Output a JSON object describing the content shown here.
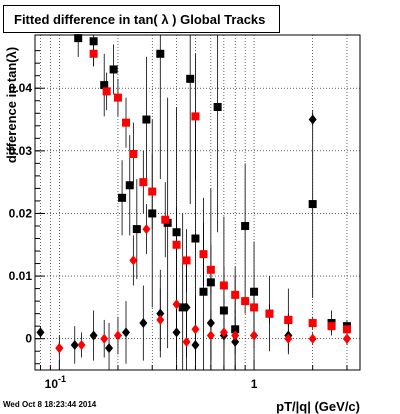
{
  "chart_data": {
    "type": "scatter",
    "title": "Fitted difference in tan( λ )  Global Tracks",
    "xlabel": "pT/|q| (GeV/c)",
    "ylabel": "difference in tan(λ)",
    "x_scale": "log",
    "xlim": [
      0.075,
      3.5
    ],
    "ylim": [
      -0.005,
      0.0485
    ],
    "x_tick_labels": [
      "10^-1",
      "1"
    ],
    "y_tick_labels": [
      "0",
      "0.01",
      "0.02",
      "0.03",
      "0.04"
    ],
    "grid": true,
    "colors": {
      "black_series": "#000000",
      "red_series": "#ff0000"
    },
    "series": [
      {
        "marker": "square",
        "color": "black",
        "points": [
          {
            "x": 0.125,
            "y": 0.048,
            "err": 0.003
          },
          {
            "x": 0.15,
            "y": 0.0475,
            "err": 0.004
          },
          {
            "x": 0.17,
            "y": 0.0405,
            "err": 0.005
          },
          {
            "x": 0.19,
            "y": 0.043,
            "err": 0.004
          },
          {
            "x": 0.21,
            "y": 0.0225,
            "err": 0.006
          },
          {
            "x": 0.23,
            "y": 0.0245,
            "err": 0.008
          },
          {
            "x": 0.25,
            "y": 0.0175,
            "err": 0.008
          },
          {
            "x": 0.28,
            "y": 0.035,
            "err": 0.01
          },
          {
            "x": 0.3,
            "y": 0.02,
            "err": 0.015
          },
          {
            "x": 0.33,
            "y": 0.0455,
            "err": 0.02
          },
          {
            "x": 0.36,
            "y": 0.0185,
            "err": 0.02
          },
          {
            "x": 0.4,
            "y": 0.017,
            "err": 0.02
          },
          {
            "x": 0.43,
            "y": 0.005,
            "err": 0.015
          },
          {
            "x": 0.47,
            "y": 0.0415,
            "err": 0.02
          },
          {
            "x": 0.5,
            "y": 0.016,
            "err": 0.02
          },
          {
            "x": 0.55,
            "y": 0.0075,
            "err": 0.015
          },
          {
            "x": 0.6,
            "y": 0.009,
            "err": 0.015
          },
          {
            "x": 0.65,
            "y": 0.037,
            "err": 0.02
          },
          {
            "x": 0.7,
            "y": 0.0045,
            "err": 0.015
          },
          {
            "x": 0.8,
            "y": 0.0015,
            "err": 0.01
          },
          {
            "x": 0.9,
            "y": 0.018,
            "err": 0.01
          },
          {
            "x": 1.0,
            "y": 0.0075,
            "err": 0.008
          },
          {
            "x": 1.2,
            "y": 0.004,
            "err": 0.006
          },
          {
            "x": 1.5,
            "y": 0.003,
            "err": 0.005
          },
          {
            "x": 2.0,
            "y": 0.0215,
            "err": 0.015
          },
          {
            "x": 2.5,
            "y": 0.0025,
            "err": 0.002
          },
          {
            "x": 3.0,
            "y": 0.002,
            "err": 0.001
          }
        ]
      },
      {
        "marker": "square",
        "color": "red",
        "points": [
          {
            "x": 0.15,
            "y": 0.0455,
            "err": 0.002
          },
          {
            "x": 0.175,
            "y": 0.0395,
            "err": 0.003
          },
          {
            "x": 0.2,
            "y": 0.0385,
            "err": 0.003
          },
          {
            "x": 0.22,
            "y": 0.0345,
            "err": 0.004
          },
          {
            "x": 0.24,
            "y": 0.0295,
            "err": 0.005
          },
          {
            "x": 0.27,
            "y": 0.025,
            "err": 0.005
          },
          {
            "x": 0.3,
            "y": 0.0235,
            "err": 0.006
          },
          {
            "x": 0.35,
            "y": 0.019,
            "err": 0.006
          },
          {
            "x": 0.4,
            "y": 0.015,
            "err": 0.006
          },
          {
            "x": 0.45,
            "y": 0.0125,
            "err": 0.005
          },
          {
            "x": 0.5,
            "y": 0.0355,
            "err": 0.01
          },
          {
            "x": 0.55,
            "y": 0.0135,
            "err": 0.005
          },
          {
            "x": 0.6,
            "y": 0.011,
            "err": 0.004
          },
          {
            "x": 0.7,
            "y": 0.0085,
            "err": 0.003
          },
          {
            "x": 0.8,
            "y": 0.007,
            "err": 0.003
          },
          {
            "x": 0.9,
            "y": 0.006,
            "err": 0.002
          },
          {
            "x": 1.0,
            "y": 0.005,
            "err": 0.002
          },
          {
            "x": 1.2,
            "y": 0.004,
            "err": 0.0015
          },
          {
            "x": 1.5,
            "y": 0.003,
            "err": 0.001
          },
          {
            "x": 2.0,
            "y": 0.0025,
            "err": 0.001
          },
          {
            "x": 2.5,
            "y": 0.002,
            "err": 0.001
          },
          {
            "x": 3.0,
            "y": 0.0015,
            "err": 0.001
          }
        ]
      },
      {
        "marker": "diamond",
        "color": "black",
        "points": [
          {
            "x": 0.08,
            "y": 0.001,
            "err": 0.001
          },
          {
            "x": 0.1,
            "y": -0.0015,
            "err": 0.002
          },
          {
            "x": 0.12,
            "y": -0.001,
            "err": 0.003
          },
          {
            "x": 0.15,
            "y": 0.0005,
            "err": 0.004
          },
          {
            "x": 0.18,
            "y": -0.0015,
            "err": 0.004
          },
          {
            "x": 0.22,
            "y": 0.001,
            "err": 0.005
          },
          {
            "x": 0.27,
            "y": 0.0025,
            "err": 0.006
          },
          {
            "x": 0.33,
            "y": 0.004,
            "err": 0.007
          },
          {
            "x": 0.4,
            "y": 0.001,
            "err": 0.007
          },
          {
            "x": 0.45,
            "y": 0.005,
            "err": 0.008
          },
          {
            "x": 0.5,
            "y": -0.001,
            "err": 0.008
          },
          {
            "x": 0.6,
            "y": 0.0025,
            "err": 0.007
          },
          {
            "x": 0.7,
            "y": 0.0005,
            "err": 0.006
          },
          {
            "x": 0.8,
            "y": -0.0005,
            "err": 0.005
          },
          {
            "x": 1.0,
            "y": 0.0005,
            "err": 0.004
          },
          {
            "x": 1.5,
            "y": 0.0005,
            "err": 0.003
          },
          {
            "x": 2.0,
            "y": 0.035,
            "err": 0.001
          },
          {
            "x": 3.0,
            "y": 0.0,
            "err": 0.001
          }
        ]
      },
      {
        "marker": "diamond",
        "color": "red",
        "points": [
          {
            "x": 0.1,
            "y": -0.0015,
            "err": 0.001
          },
          {
            "x": 0.13,
            "y": -0.001,
            "err": 0.002
          },
          {
            "x": 0.17,
            "y": 0.0,
            "err": 0.003
          },
          {
            "x": 0.2,
            "y": 0.0005,
            "err": 0.003
          },
          {
            "x": 0.24,
            "y": 0.0125,
            "err": 0.004
          },
          {
            "x": 0.28,
            "y": 0.0175,
            "err": 0.004
          },
          {
            "x": 0.33,
            "y": 0.003,
            "err": 0.005
          },
          {
            "x": 0.4,
            "y": 0.0055,
            "err": 0.005
          },
          {
            "x": 0.45,
            "y": -0.0005,
            "err": 0.005
          },
          {
            "x": 0.5,
            "y": 0.0015,
            "err": 0.004
          },
          {
            "x": 0.6,
            "y": 0.0005,
            "err": 0.004
          },
          {
            "x": 0.7,
            "y": 0.001,
            "err": 0.003
          },
          {
            "x": 0.8,
            "y": 0.0005,
            "err": 0.003
          },
          {
            "x": 1.0,
            "y": 0.0005,
            "err": 0.002
          },
          {
            "x": 1.5,
            "y": 0.0,
            "err": 0.001
          },
          {
            "x": 2.0,
            "y": 0.0,
            "err": 0.001
          },
          {
            "x": 3.0,
            "y": 0.0,
            "err": 0.001
          }
        ]
      }
    ]
  },
  "footer_text": "Wed Oct  8 18:23:44 2014"
}
